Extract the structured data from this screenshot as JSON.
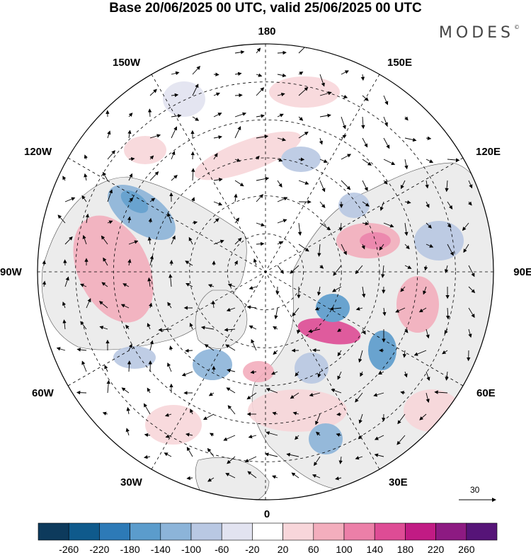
{
  "title": "Base 20/06/2025 00 UTC, valid 25/06/2025 00 UTC",
  "brand": "MODES",
  "brand_mark": "©",
  "meridian_labels": {
    "top": "180",
    "bottom": "0",
    "left": "90W",
    "right": "90E",
    "upper_left_1": "150W",
    "upper_left_2": "120W",
    "upper_right_1": "150E",
    "upper_right_2": "120E",
    "lower_left_1": "60W",
    "lower_left_2": "30W",
    "lower_right_1": "60E",
    "lower_right_2": "30E"
  },
  "vector_scale_label": "30",
  "colorbar": {
    "ticks": [
      "-260",
      "-220",
      "-180",
      "-140",
      "-100",
      "-60",
      "-20",
      "20",
      "60",
      "100",
      "140",
      "180",
      "220",
      "260"
    ],
    "colors": [
      "#0d3a5c",
      "#0f5a8c",
      "#2d7ab7",
      "#5b9ccc",
      "#8cb4d9",
      "#b9c8e3",
      "#e2e3f0",
      "#ffffff",
      "#f8d6da",
      "#f3aebd",
      "#ec7fa8",
      "#de4c95",
      "#c11b84",
      "#8d1a82",
      "#561478"
    ]
  },
  "colors": {
    "land": "#ececec",
    "ocean": "#ffffff",
    "grid": "#000000"
  }
}
